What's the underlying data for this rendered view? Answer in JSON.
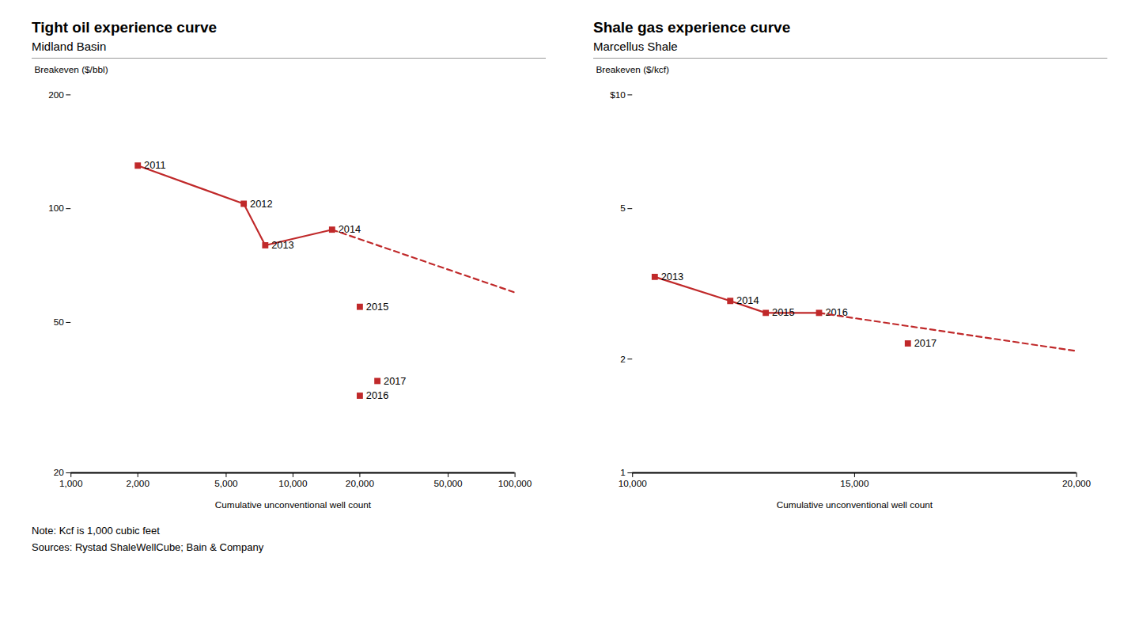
{
  "chart_data": [
    {
      "type": "line",
      "title": "Tight oil experience curve",
      "subtitle": "Midland Basin",
      "ylabel": "Breakeven ($/bbl)",
      "xlabel": "Cumulative unconventional well count",
      "log": true,
      "grid": false,
      "color": "#c0292a",
      "xlim": [
        1000,
        100000
      ],
      "ylim": [
        20,
        200
      ],
      "xticks": [
        {
          "value": 1000,
          "label": "1,000"
        },
        {
          "value": 2000,
          "label": "2,000"
        },
        {
          "value": 5000,
          "label": "5,000"
        },
        {
          "value": 10000,
          "label": "10,000"
        },
        {
          "value": 20000,
          "label": "20,000"
        },
        {
          "value": 50000,
          "label": "50,000"
        },
        {
          "value": 100000,
          "label": "100,000"
        }
      ],
      "yticks": [
        20,
        50,
        100,
        200
      ],
      "series": [
        {
          "type": "line",
          "marker": "square",
          "line_style": "solid",
          "x": [
            2000,
            6000,
            7500,
            15000
          ],
          "values": [
            130,
            103,
            80,
            88
          ],
          "labels": [
            "2011",
            "2012",
            "2013",
            "2014"
          ]
        },
        {
          "type": "line",
          "line_style": "dashed",
          "x": [
            15000,
            100000
          ],
          "values": [
            88,
            60
          ]
        },
        {
          "type": "scatter",
          "marker": "square",
          "x": [
            20000,
            24000,
            20000
          ],
          "values": [
            32,
            35,
            55
          ],
          "labels": [
            "2016",
            "2017",
            "2015"
          ]
        }
      ]
    },
    {
      "type": "line",
      "title": "Shale gas experience curve",
      "subtitle": "Marcellus Shale",
      "ylabel": "Breakeven ($/kcf)",
      "xlabel": "Cumulative unconventional well count",
      "log": "y",
      "grid": false,
      "color": "#c0292a",
      "xlim": [
        10000,
        20000
      ],
      "ylim": [
        1,
        10
      ],
      "xticks": [
        {
          "value": 10000,
          "label": "10,000"
        },
        {
          "value": 15000,
          "label": "15,000"
        },
        {
          "value": 20000,
          "label": "20,000"
        }
      ],
      "yticks": [
        1,
        2,
        5,
        {
          "value": 10,
          "label": "$10"
        }
      ],
      "series": [
        {
          "type": "line",
          "marker": "square",
          "line_style": "solid",
          "x": [
            10500,
            12200,
            13000,
            14200
          ],
          "values": [
            3.3,
            2.85,
            2.65,
            2.65
          ],
          "labels": [
            "2013",
            "2014",
            "2015",
            "2016"
          ]
        },
        {
          "type": "line",
          "line_style": "dashed",
          "x": [
            14200,
            20000
          ],
          "values": [
            2.65,
            2.1
          ]
        },
        {
          "type": "scatter",
          "marker": "square",
          "x": [
            16200
          ],
          "values": [
            2.2
          ],
          "labels": [
            "2017"
          ]
        }
      ]
    }
  ],
  "note": "Note: Kcf is 1,000 cubic feet",
  "source": "Sources: Rystad ShaleWellCube; Bain & Company"
}
